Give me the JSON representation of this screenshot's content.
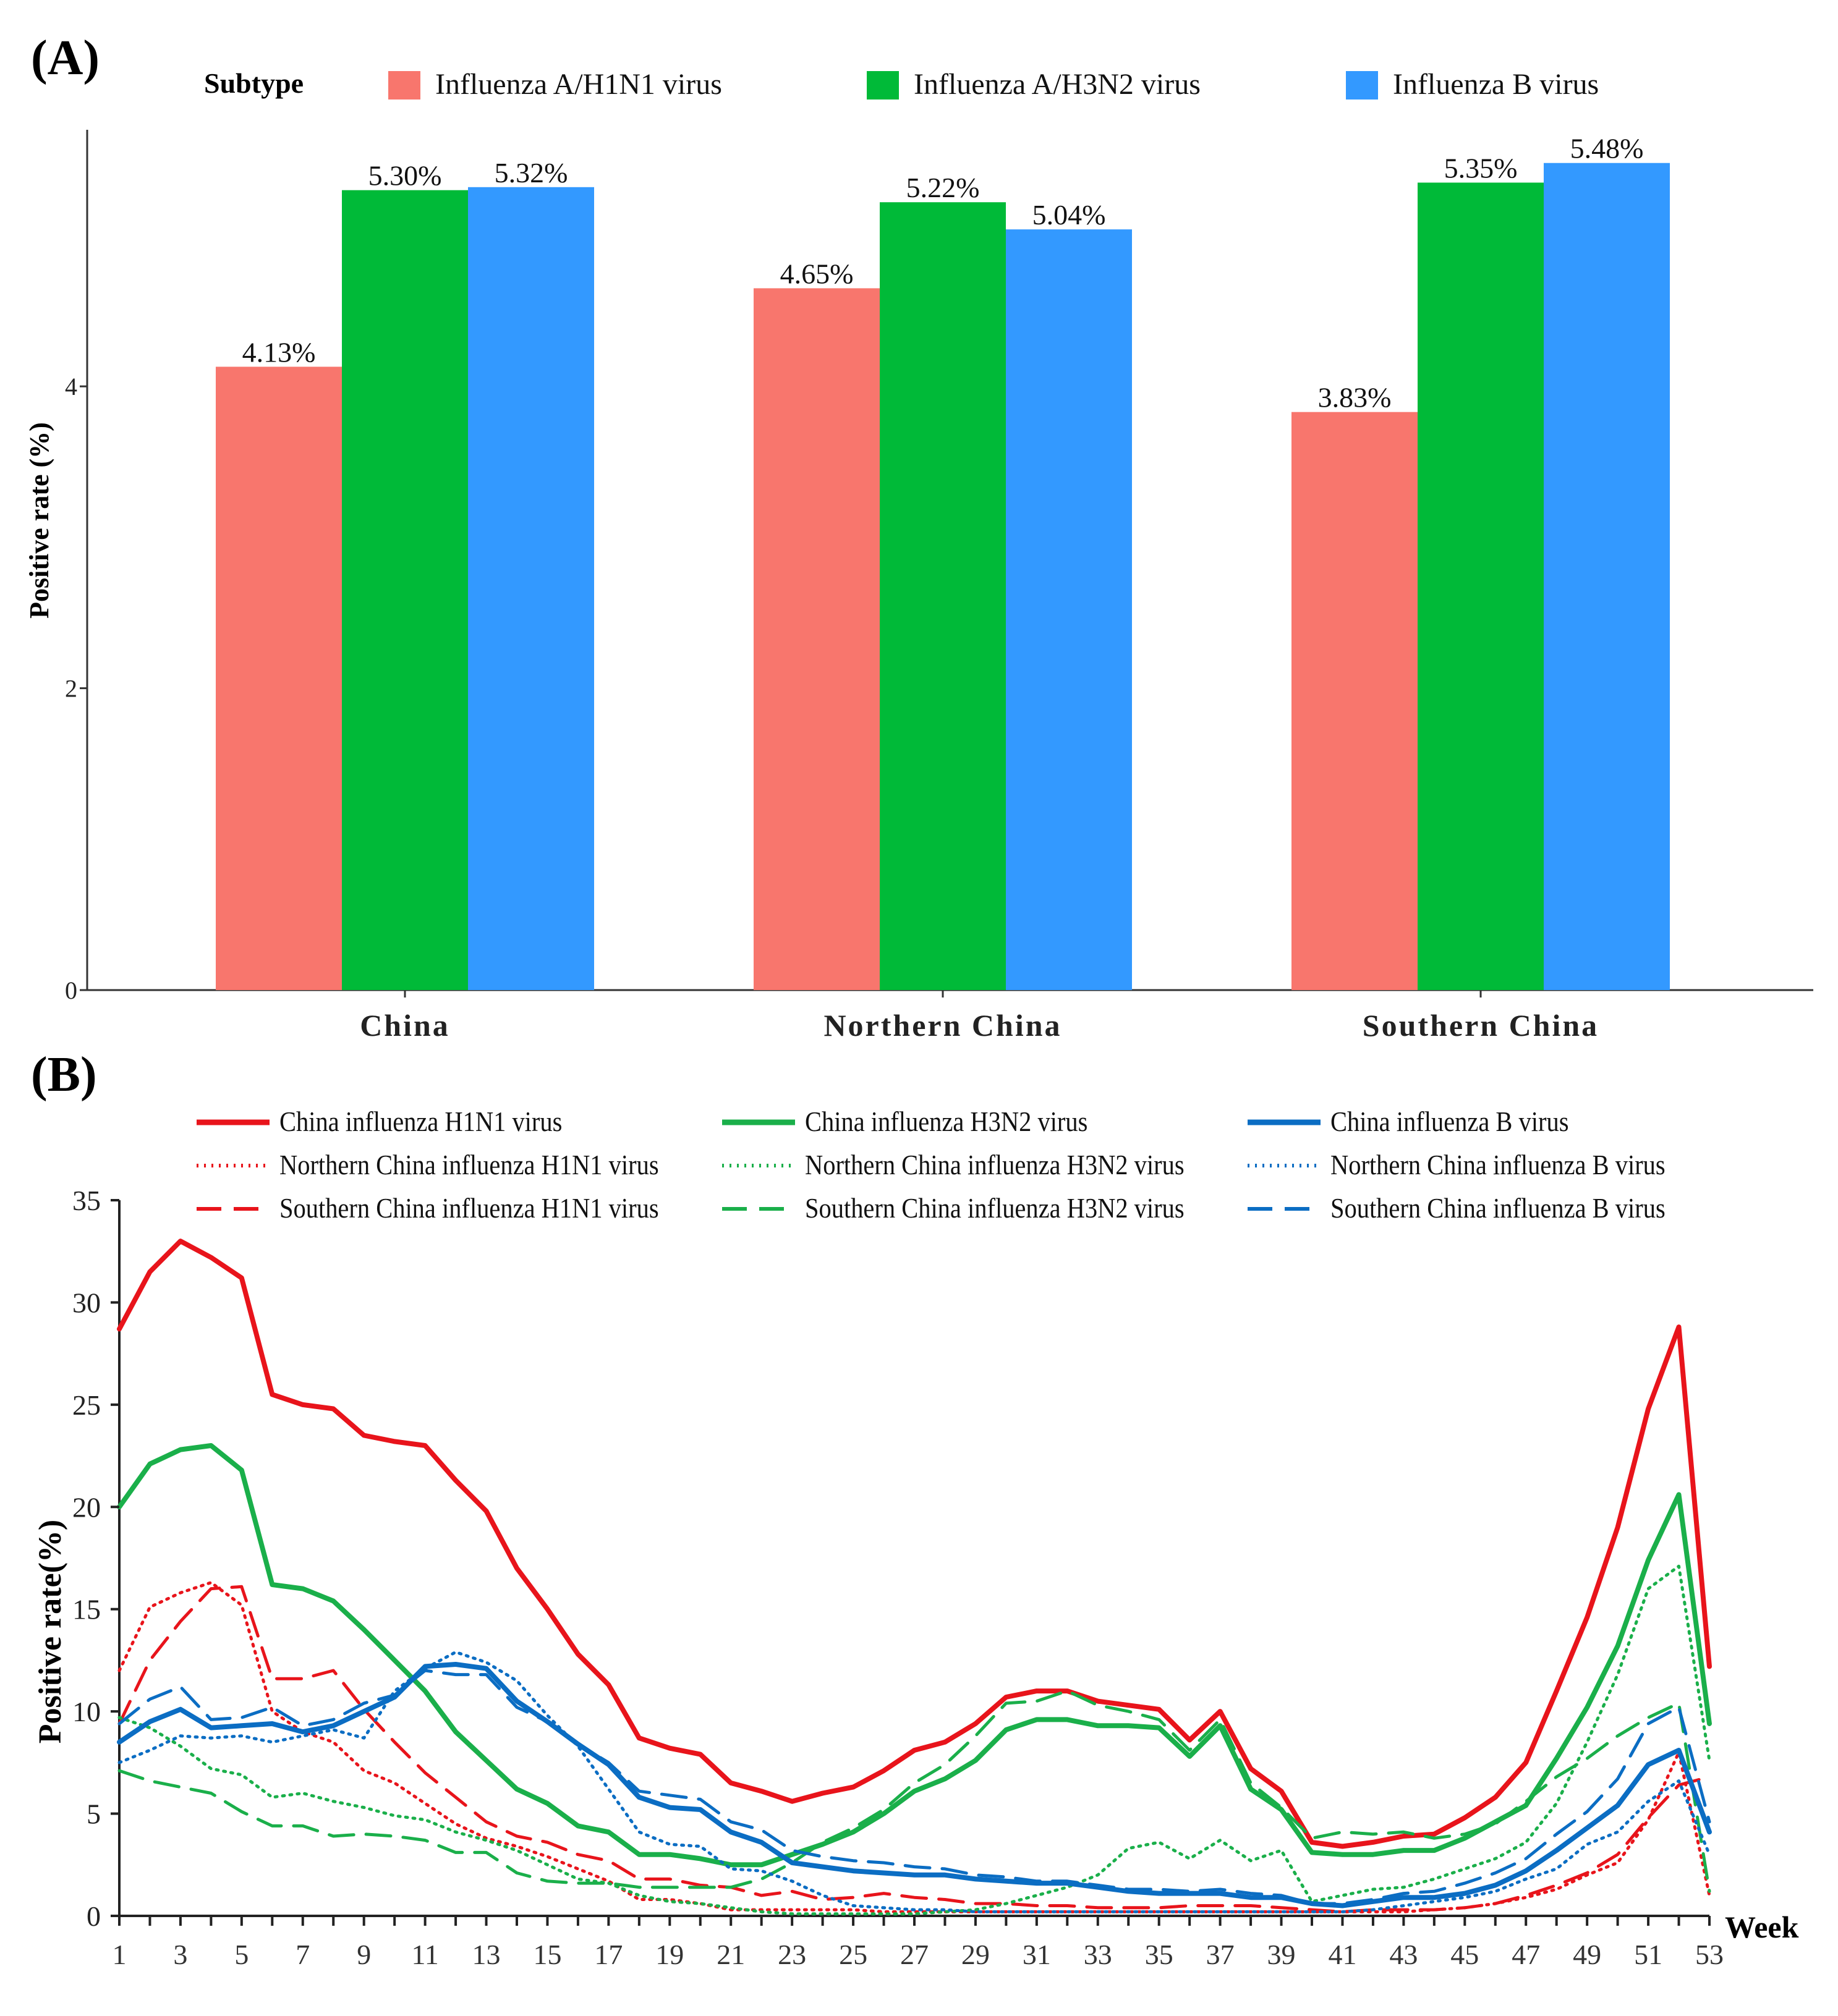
{
  "chart_data": [
    {
      "panel_label": "(A)",
      "type": "bar",
      "legend_title": "Subtype",
      "categories": [
        "China",
        "Northern China",
        "Southern China"
      ],
      "series": [
        {
          "name": "Influenza A/H1N1 virus",
          "color": "#F8766D",
          "values": [
            4.13,
            4.65,
            3.83
          ],
          "labels": [
            "4.13%",
            "4.65%",
            "3.83%"
          ]
        },
        {
          "name": "Influenza A/H3N2 virus",
          "color": "#00BA38",
          "values": [
            5.3,
            5.22,
            5.35
          ],
          "labels": [
            "5.30%",
            "5.22%",
            "5.35%"
          ]
        },
        {
          "name": "Influenza B virus",
          "color": "#3399FF",
          "values": [
            5.32,
            5.04,
            5.48
          ],
          "labels": [
            "5.32%",
            "5.04%",
            "5.48%"
          ]
        }
      ],
      "ylabel": "Positive rate (%)",
      "yticks": [
        0,
        2,
        4
      ],
      "ylim": [
        0,
        5.7
      ]
    },
    {
      "panel_label": "(B)",
      "type": "line",
      "xlabel": "Week",
      "ylabel": "Positive rate(%)",
      "xticks": [
        1,
        3,
        5,
        7,
        9,
        11,
        13,
        15,
        17,
        19,
        21,
        23,
        25,
        27,
        29,
        31,
        33,
        35,
        37,
        39,
        41,
        43,
        45,
        47,
        49,
        51,
        53
      ],
      "yticks": [
        0,
        5,
        10,
        15,
        20,
        25,
        30,
        35
      ],
      "xlim": [
        1,
        53
      ],
      "ylim": [
        0,
        35
      ],
      "series": [
        {
          "name": "China influenza H1N1 virus",
          "color": "#E8141B",
          "style": "solid",
          "values": [
            28.7,
            31.5,
            33.0,
            32.2,
            31.2,
            25.5,
            25.0,
            24.8,
            23.5,
            23.2,
            23.0,
            21.3,
            19.8,
            17.0,
            15.0,
            12.8,
            11.3,
            8.7,
            8.2,
            7.9,
            6.5,
            6.1,
            5.6,
            6.0,
            6.3,
            7.1,
            8.1,
            8.5,
            9.4,
            10.7,
            11.0,
            11.0,
            10.5,
            10.3,
            10.1,
            8.6,
            10.0,
            7.2,
            6.1,
            3.6,
            3.4,
            3.6,
            3.9,
            4.0,
            4.8,
            5.8,
            7.5,
            11.0,
            14.6,
            19.0,
            24.8,
            28.8,
            12.2
          ]
        },
        {
          "name": "Northern China influenza H1N1 virus",
          "color": "#E8141B",
          "style": "dotted",
          "values": [
            12.0,
            15.1,
            15.8,
            16.3,
            15.2,
            10.0,
            9.0,
            8.5,
            7.1,
            6.5,
            5.5,
            4.5,
            3.8,
            3.4,
            2.9,
            2.3,
            1.7,
            0.8,
            0.8,
            0.6,
            0.3,
            0.3,
            0.3,
            0.3,
            0.3,
            0.2,
            0.2,
            0.2,
            0.2,
            0.2,
            0.2,
            0.2,
            0.2,
            0.2,
            0.2,
            0.2,
            0.2,
            0.2,
            0.2,
            0.2,
            0.2,
            0.2,
            0.2,
            0.3,
            0.4,
            0.6,
            0.9,
            1.3,
            2.0,
            2.6,
            4.7,
            8.0,
            1.0
          ]
        },
        {
          "name": "Southern China influenza H1N1 virus",
          "color": "#E8141B",
          "style": "dashed",
          "values": [
            9.4,
            12.5,
            14.4,
            16.0,
            16.1,
            11.6,
            11.6,
            12.0,
            10.1,
            8.5,
            7.0,
            5.8,
            4.6,
            3.9,
            3.6,
            3.0,
            2.7,
            1.8,
            1.8,
            1.5,
            1.4,
            1.0,
            1.2,
            0.8,
            0.9,
            1.1,
            0.9,
            0.8,
            0.6,
            0.6,
            0.5,
            0.5,
            0.4,
            0.4,
            0.4,
            0.5,
            0.5,
            0.5,
            0.4,
            0.3,
            0.2,
            0.3,
            0.3,
            0.3,
            0.4,
            0.6,
            1.0,
            1.5,
            2.1,
            3.0,
            4.8,
            6.4,
            6.8
          ]
        },
        {
          "name": "China influenza H3N2 virus",
          "color": "#1AAF4A",
          "style": "solid",
          "values": [
            20.0,
            22.1,
            22.8,
            23.0,
            21.8,
            16.2,
            16.0,
            15.4,
            14.0,
            12.5,
            11.0,
            9.0,
            7.6,
            6.2,
            5.5,
            4.4,
            4.1,
            3.0,
            3.0,
            2.8,
            2.5,
            2.5,
            3.0,
            3.5,
            4.1,
            5.0,
            6.1,
            6.7,
            7.6,
            9.1,
            9.6,
            9.6,
            9.3,
            9.3,
            9.2,
            7.8,
            9.3,
            6.2,
            5.2,
            3.1,
            3.0,
            3.0,
            3.2,
            3.2,
            3.8,
            4.6,
            5.4,
            7.7,
            10.2,
            13.2,
            17.4,
            20.6,
            9.4
          ]
        },
        {
          "name": "Northern China influenza H3N2 virus",
          "color": "#1AAF4A",
          "style": "dotted",
          "values": [
            9.7,
            9.2,
            8.3,
            7.2,
            6.9,
            5.8,
            6.0,
            5.6,
            5.3,
            4.9,
            4.7,
            4.1,
            3.7,
            3.2,
            2.5,
            1.8,
            1.6,
            1.0,
            0.7,
            0.6,
            0.4,
            0.2,
            0.1,
            0.1,
            0.1,
            0.1,
            0.1,
            0.2,
            0.3,
            0.6,
            1.0,
            1.4,
            2.0,
            3.3,
            3.6,
            2.8,
            3.7,
            2.7,
            3.2,
            0.7,
            1.0,
            1.3,
            1.4,
            1.8,
            2.3,
            2.8,
            3.6,
            5.5,
            8.5,
            11.8,
            16.0,
            17.1,
            7.6
          ]
        },
        {
          "name": "Southern China influenza H3N2 virus",
          "color": "#1AAF4A",
          "style": "dashed",
          "values": [
            7.1,
            6.6,
            6.3,
            6.0,
            5.1,
            4.4,
            4.4,
            3.9,
            4.0,
            3.9,
            3.7,
            3.1,
            3.1,
            2.1,
            1.7,
            1.6,
            1.6,
            1.4,
            1.4,
            1.4,
            1.4,
            1.8,
            2.6,
            3.6,
            4.3,
            5.2,
            6.5,
            7.4,
            8.8,
            10.4,
            10.5,
            11.0,
            10.3,
            10.0,
            9.6,
            8.1,
            9.6,
            6.5,
            5.3,
            3.8,
            4.1,
            4.0,
            4.1,
            3.8,
            4.0,
            4.5,
            5.6,
            6.8,
            7.7,
            8.8,
            9.7,
            10.4,
            1.2
          ]
        },
        {
          "name": "China influenza B virus",
          "color": "#0B6DC3",
          "style": "solid",
          "values": [
            8.5,
            9.5,
            10.1,
            9.2,
            9.3,
            9.4,
            9.0,
            9.3,
            10.0,
            10.7,
            12.2,
            12.3,
            12.1,
            10.5,
            9.5,
            8.4,
            7.4,
            5.8,
            5.3,
            5.2,
            4.1,
            3.6,
            2.6,
            2.4,
            2.2,
            2.1,
            2.0,
            2.0,
            1.8,
            1.7,
            1.6,
            1.6,
            1.4,
            1.2,
            1.1,
            1.1,
            1.1,
            0.9,
            0.9,
            0.6,
            0.5,
            0.7,
            0.9,
            0.9,
            1.1,
            1.5,
            2.2,
            3.2,
            4.3,
            5.4,
            7.4,
            8.1,
            4.1
          ]
        },
        {
          "name": "Northern China influenza B virus",
          "color": "#0B6DC3",
          "style": "dotted",
          "values": [
            7.5,
            8.1,
            8.8,
            8.7,
            8.8,
            8.5,
            8.8,
            9.1,
            8.7,
            11.0,
            12.1,
            12.9,
            12.4,
            11.5,
            9.8,
            8.3,
            6.2,
            4.1,
            3.5,
            3.4,
            2.3,
            2.2,
            1.7,
            1.0,
            0.5,
            0.4,
            0.3,
            0.3,
            0.2,
            0.2,
            0.2,
            0.2,
            0.2,
            0.2,
            0.2,
            0.2,
            0.2,
            0.2,
            0.2,
            0.2,
            0.2,
            0.3,
            0.5,
            0.7,
            0.9,
            1.2,
            1.8,
            2.3,
            3.5,
            4.1,
            5.6,
            6.6,
            3.0
          ]
        },
        {
          "name": "Southern China influenza B virus",
          "color": "#0B6DC3",
          "style": "dashed",
          "values": [
            9.4,
            10.6,
            11.2,
            9.6,
            9.7,
            10.2,
            9.3,
            9.6,
            10.4,
            10.8,
            12.0,
            11.8,
            11.8,
            10.2,
            9.5,
            8.4,
            7.5,
            6.1,
            5.9,
            5.7,
            4.6,
            4.2,
            3.2,
            2.9,
            2.7,
            2.6,
            2.4,
            2.3,
            2.0,
            1.9,
            1.7,
            1.7,
            1.5,
            1.3,
            1.3,
            1.2,
            1.3,
            1.1,
            1.0,
            0.6,
            0.6,
            0.8,
            1.1,
            1.2,
            1.6,
            2.1,
            2.8,
            4.0,
            5.1,
            6.7,
            9.4,
            10.2,
            4.6
          ]
        }
      ]
    }
  ]
}
